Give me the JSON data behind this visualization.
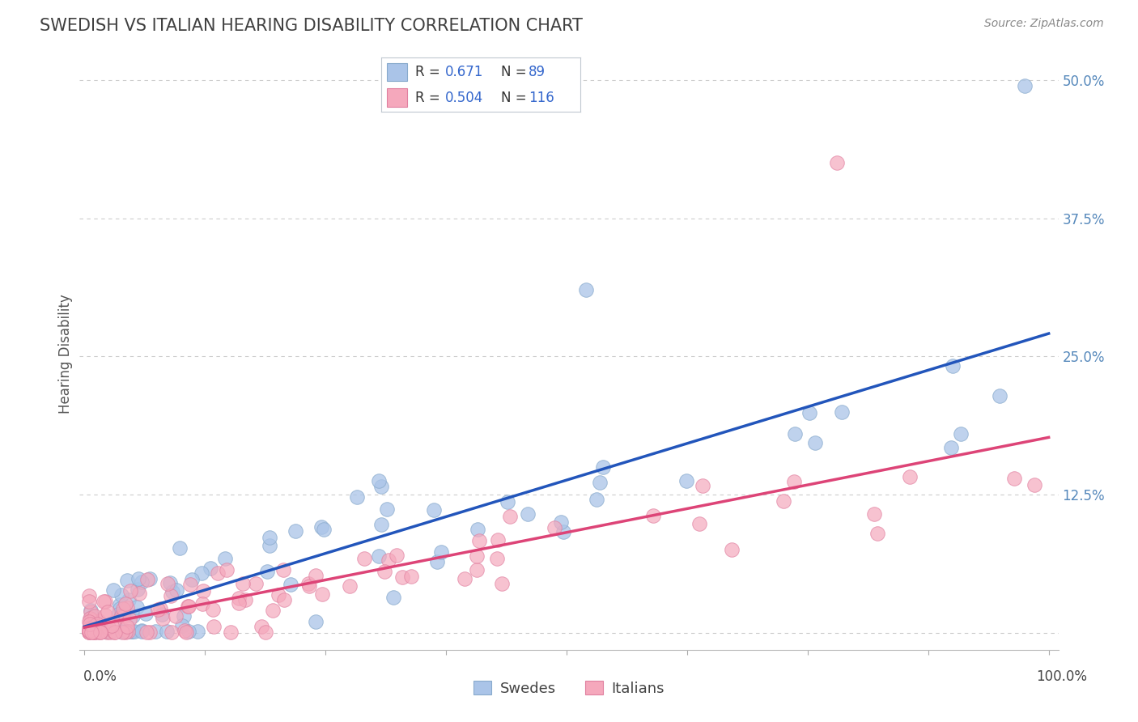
{
  "title": "SWEDISH VS ITALIAN HEARING DISABILITY CORRELATION CHART",
  "source": "Source: ZipAtlas.com",
  "ylabel": "Hearing Disability",
  "legend_swedes": "Swedes",
  "legend_italians": "Italians",
  "R_swedes": 0.671,
  "N_swedes": 89,
  "R_italians": 0.504,
  "N_italians": 116,
  "swedes_color": "#aac4e8",
  "italians_color": "#f5a8bc",
  "swedes_edge_color": "#88aacc",
  "italians_edge_color": "#e080a0",
  "swedes_line_color": "#2255bb",
  "italians_line_color": "#dd4477",
  "background_color": "#ffffff",
  "grid_color": "#cccccc",
  "title_color": "#404040",
  "source_color": "#888888",
  "ytick_color": "#5588bb",
  "ytick_vals": [
    0,
    12.5,
    25.0,
    37.5,
    50.0
  ],
  "ytick_labels": [
    "",
    "12.5%",
    "25.0%",
    "37.5%",
    "50.0%"
  ],
  "legend_box_color": "#f0f4f8",
  "legend_border_color": "#c0c8d0"
}
